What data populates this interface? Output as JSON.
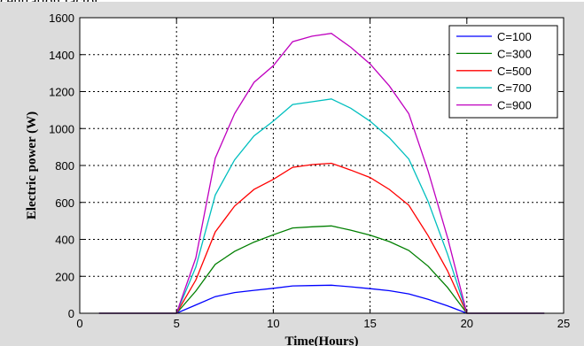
{
  "top_text": "centration factor.",
  "chart_data": {
    "type": "line",
    "xlabel": "Time(Hours)",
    "ylabel": "Electric power (W)",
    "xlim": [
      0,
      25
    ],
    "ylim": [
      0,
      1600
    ],
    "xticks": [
      0,
      5,
      10,
      15,
      20,
      25
    ],
    "yticks": [
      0,
      200,
      400,
      600,
      800,
      1000,
      1200,
      1400,
      1600
    ],
    "grid": true,
    "legend_position": "top-right",
    "x": [
      1,
      5,
      6,
      7,
      8,
      9,
      10,
      11,
      12,
      13,
      14,
      15,
      16,
      17,
      18,
      19,
      20,
      24
    ],
    "series": [
      {
        "name": "C=100",
        "color": "#0000ff",
        "values": [
          0,
          0,
          45,
          90,
          112,
          124,
          135,
          148,
          150,
          152,
          143,
          133,
          122,
          105,
          75,
          40,
          0,
          0
        ]
      },
      {
        "name": "C=300",
        "color": "#007f00",
        "values": [
          0,
          0,
          120,
          265,
          335,
          385,
          425,
          462,
          468,
          473,
          450,
          423,
          388,
          340,
          255,
          140,
          0,
          0
        ]
      },
      {
        "name": "C=500",
        "color": "#ff0000",
        "values": [
          0,
          0,
          180,
          440,
          580,
          670,
          725,
          790,
          805,
          812,
          775,
          735,
          670,
          585,
          420,
          230,
          0,
          0
        ]
      },
      {
        "name": "C=700",
        "color": "#00bfbf",
        "values": [
          0,
          0,
          250,
          640,
          830,
          960,
          1040,
          1130,
          1145,
          1160,
          1110,
          1040,
          950,
          835,
          605,
          320,
          0,
          0
        ]
      },
      {
        "name": "C=900",
        "color": "#bf00bf",
        "values": [
          0,
          0,
          300,
          840,
          1080,
          1250,
          1340,
          1470,
          1500,
          1515,
          1440,
          1350,
          1230,
          1080,
          770,
          410,
          0,
          0
        ]
      }
    ]
  }
}
